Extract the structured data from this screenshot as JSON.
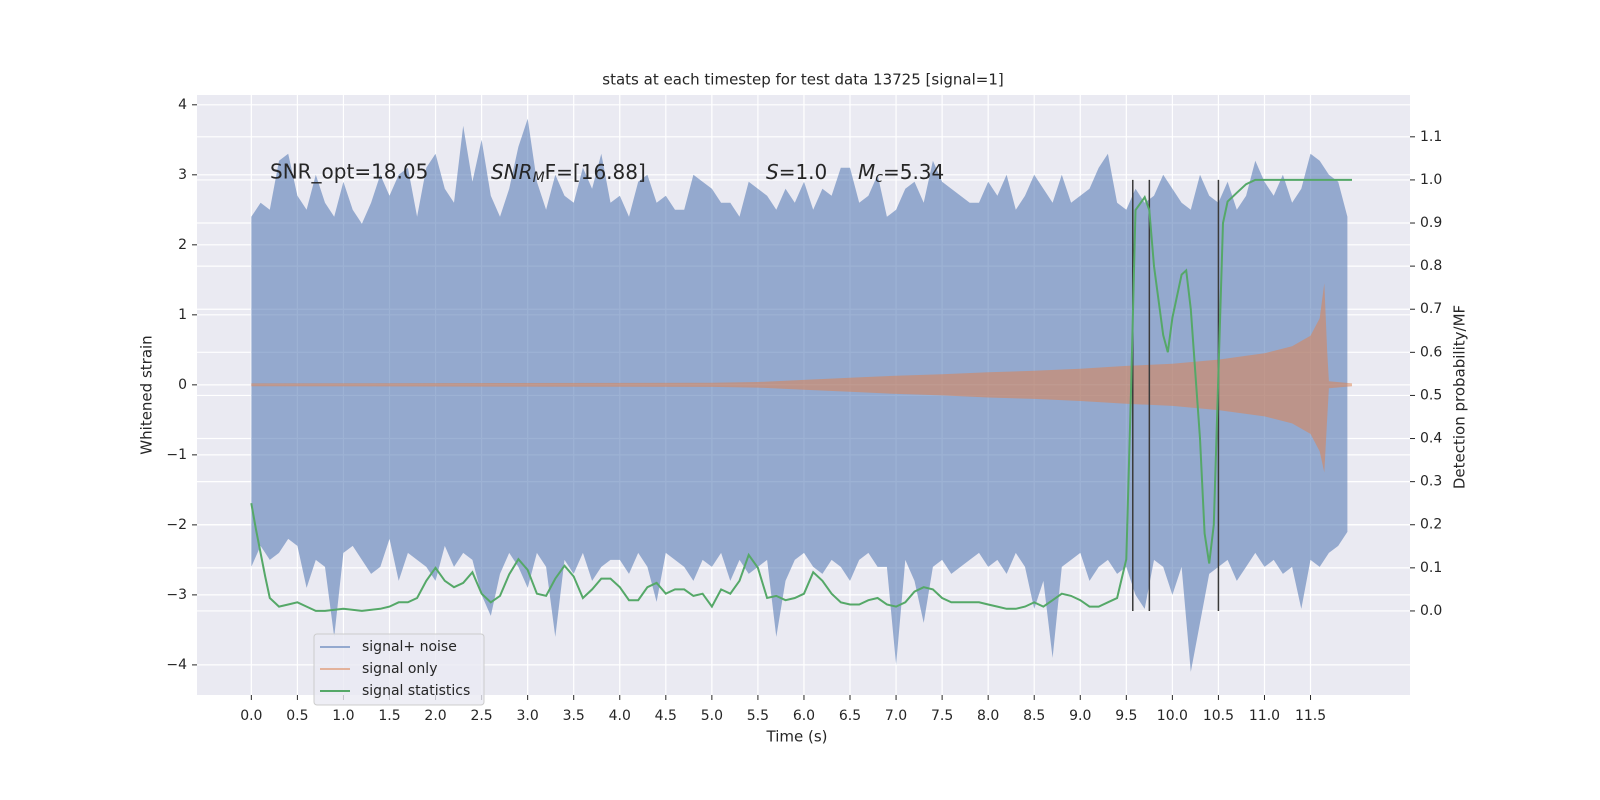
{
  "chart_data": {
    "type": "line",
    "title": "stats at each timestep for test data 13725 [signal=1]",
    "x_label": "Time (s)",
    "y_label": "Whitened strain",
    "y2_label": "Detection probability/MF",
    "xlim": [
      -0.59,
      12.58
    ],
    "ylim": [
      -4.43,
      4.14
    ],
    "y2lim": [
      -0.195,
      1.197
    ],
    "xticks": [
      {
        "value": 0,
        "label": "0.0"
      },
      0.5,
      {
        "value": 1,
        "label": "1.0"
      },
      1.5,
      {
        "value": 2,
        "label": "2.0"
      },
      2.5,
      {
        "value": 3,
        "label": "3.0"
      },
      3.5,
      {
        "value": 4,
        "label": "4.0"
      },
      4.5,
      {
        "value": 5,
        "label": "5.0"
      },
      5.5,
      {
        "value": 6,
        "label": "6.0"
      },
      6.5,
      {
        "value": 7,
        "label": "7.0"
      },
      7.5,
      {
        "value": 8,
        "label": "8.0"
      },
      8.5,
      {
        "value": 9,
        "label": "9.0"
      },
      9.5,
      {
        "value": 10,
        "label": "10.0"
      },
      10.5,
      {
        "value": 11,
        "label": "11.0"
      },
      11.5
    ],
    "yticks": [
      {
        "value": -4,
        "label": "−4"
      },
      {
        "value": -3,
        "label": "−3"
      },
      {
        "value": -2,
        "label": "−2"
      },
      {
        "value": -1,
        "label": "−1"
      },
      0,
      1,
      2,
      3,
      4
    ],
    "y2ticks": [
      {
        "value": 0,
        "label": "0.0"
      },
      0.1,
      0.2,
      0.3,
      0.4,
      0.5,
      0.6,
      0.7,
      0.8,
      0.9,
      {
        "value": 1,
        "label": "1.0"
      },
      1.1
    ],
    "grid": true,
    "legend": "lower left",
    "annotations": [
      "SNR_opt=18.05",
      {
        "italic": "SNR",
        "sub": "M",
        "text": "F=[16.88]"
      },
      {
        "italic": "S",
        "text": "=1.0"
      },
      {
        "italic": "M",
        "sub": "c",
        "text": "=5.34"
      }
    ],
    "vlines": {
      "x": [
        9.57,
        9.75,
        10.5
      ],
      "ymin": 0,
      "ymax": 1,
      "color": "#3a3a3a"
    },
    "series": [
      {
        "name": "signal+ noise",
        "color": "#4c72b0",
        "x": [
          0,
          0.1,
          0.2,
          0.3,
          0.4,
          0.5,
          0.6,
          0.7,
          0.8,
          0.9,
          1,
          1.1,
          1.2,
          1.3,
          1.4,
          1.5,
          1.6,
          1.7,
          1.8,
          1.9,
          2,
          2.1,
          2.2,
          2.3,
          2.4,
          2.5,
          2.6,
          2.7,
          2.8,
          2.9,
          3,
          3.1,
          3.2,
          3.3,
          3.4,
          3.5,
          3.6,
          3.7,
          3.8,
          3.9,
          4,
          4.1,
          4.2,
          4.3,
          4.4,
          4.5,
          4.6,
          4.7,
          4.8,
          4.9,
          5,
          5.1,
          5.2,
          5.3,
          5.4,
          5.5,
          5.6,
          5.7,
          5.8,
          5.9,
          6,
          6.1,
          6.2,
          6.3,
          6.4,
          6.5,
          6.6,
          6.7,
          6.8,
          6.9,
          7,
          7.1,
          7.2,
          7.3,
          7.4,
          7.5,
          7.6,
          7.7,
          7.8,
          7.9,
          8,
          8.1,
          8.2,
          8.3,
          8.4,
          8.5,
          8.6,
          8.7,
          8.8,
          8.9,
          9,
          9.1,
          9.2,
          9.3,
          9.4,
          9.5,
          9.6,
          9.7,
          9.8,
          9.9,
          10,
          10.1,
          10.2,
          10.3,
          10.4,
          10.5,
          10.6,
          10.7,
          10.8,
          10.9,
          11,
          11.1,
          11.2,
          11.3,
          11.4,
          11.5,
          11.6,
          11.7,
          11.8,
          11.9
        ],
        "values": [
          2.4,
          2.6,
          2.5,
          3.2,
          3.3,
          2.7,
          2.5,
          3.0,
          2.6,
          2.4,
          2.9,
          2.5,
          2.3,
          2.6,
          3.0,
          2.7,
          3.0,
          3.1,
          2.4,
          3.1,
          3.3,
          2.8,
          2.6,
          3.7,
          2.9,
          3.5,
          2.7,
          2.4,
          2.8,
          3.4,
          3.8,
          2.9,
          2.5,
          3.0,
          2.7,
          2.6,
          3.1,
          2.8,
          3.3,
          2.6,
          2.7,
          2.4,
          2.9,
          3.0,
          2.6,
          2.7,
          2.5,
          2.5,
          3.0,
          2.9,
          2.8,
          2.6,
          2.6,
          2.4,
          2.9,
          2.8,
          2.7,
          2.5,
          2.8,
          2.6,
          2.9,
          2.5,
          2.8,
          2.7,
          3.1,
          3.1,
          2.6,
          2.7,
          3.0,
          2.4,
          2.5,
          2.8,
          2.9,
          2.6,
          3.2,
          2.9,
          2.8,
          2.7,
          2.6,
          2.6,
          2.9,
          2.7,
          3.0,
          2.5,
          2.7,
          3.0,
          2.8,
          2.6,
          3.0,
          2.6,
          2.7,
          2.8,
          3.1,
          3.3,
          2.6,
          2.5,
          2.8,
          2.6,
          2.7,
          3.0,
          2.8,
          2.6,
          2.5,
          3.0,
          2.7,
          2.6,
          2.9,
          2.5,
          2.7,
          3.2,
          2.9,
          2.7,
          3.0,
          2.6,
          2.8,
          3.3,
          3.2,
          3.0,
          2.9,
          2.4
        ],
        "lower": [
          -2.6,
          -2.3,
          -2.5,
          -2.4,
          -2.2,
          -2.3,
          -2.9,
          -2.5,
          -2.6,
          -3.6,
          -2.4,
          -2.3,
          -2.5,
          -2.7,
          -2.6,
          -2.2,
          -2.8,
          -2.4,
          -2.5,
          -2.6,
          -2.8,
          -2.3,
          -2.6,
          -2.4,
          -2.5,
          -3.0,
          -3.3,
          -2.7,
          -2.4,
          -2.6,
          -2.9,
          -2.4,
          -2.6,
          -3.6,
          -2.5,
          -2.7,
          -2.4,
          -2.8,
          -2.6,
          -2.5,
          -2.5,
          -2.7,
          -2.4,
          -2.6,
          -3.1,
          -2.4,
          -2.5,
          -2.6,
          -2.8,
          -2.5,
          -2.6,
          -2.4,
          -2.8,
          -2.5,
          -2.7,
          -2.6,
          -2.5,
          -3.6,
          -2.8,
          -2.5,
          -2.4,
          -2.6,
          -2.7,
          -2.5,
          -2.6,
          -2.8,
          -2.5,
          -2.4,
          -2.6,
          -2.6,
          -4.0,
          -2.5,
          -2.8,
          -3.4,
          -2.6,
          -2.5,
          -2.7,
          -2.6,
          -2.5,
          -2.4,
          -2.6,
          -2.5,
          -2.7,
          -2.4,
          -2.6,
          -3.2,
          -2.8,
          -3.9,
          -2.6,
          -2.5,
          -2.4,
          -2.8,
          -2.6,
          -2.5,
          -2.7,
          -2.6,
          -3.0,
          -3.2,
          -2.5,
          -2.6,
          -3.0,
          -2.6,
          -4.1,
          -3.4,
          -2.7,
          -2.6,
          -2.5,
          -2.8,
          -2.6,
          -2.4,
          -2.6,
          -2.5,
          -2.7,
          -2.6,
          -3.2,
          -2.5,
          -2.6,
          -2.4,
          -2.3,
          -2.1
        ]
      },
      {
        "name": "signal only",
        "color": "#dd8452",
        "x": [
          0,
          5.0,
          5.5,
          6.0,
          6.5,
          7.0,
          7.5,
          8.0,
          8.5,
          9.0,
          9.5,
          10.0,
          10.5,
          11.0,
          11.3,
          11.5,
          11.6,
          11.65,
          11.68,
          11.7,
          11.95
        ],
        "values": [
          0.02,
          0.03,
          0.04,
          0.07,
          0.1,
          0.13,
          0.15,
          0.18,
          0.2,
          0.23,
          0.27,
          0.3,
          0.36,
          0.45,
          0.55,
          0.7,
          0.95,
          1.45,
          0.5,
          0.05,
          0.02
        ],
        "lower": [
          -0.02,
          -0.03,
          -0.04,
          -0.07,
          -0.1,
          -0.13,
          -0.15,
          -0.18,
          -0.2,
          -0.23,
          -0.27,
          -0.3,
          -0.36,
          -0.45,
          -0.55,
          -0.7,
          -0.95,
          -1.25,
          -0.5,
          -0.05,
          -0.02
        ]
      },
      {
        "name": "signal statistics",
        "color": "#55a868",
        "axis": "y2",
        "x": [
          0,
          0.05,
          0.15,
          0.2,
          0.3,
          0.4,
          0.5,
          0.6,
          0.7,
          0.8,
          1.0,
          1.2,
          1.4,
          1.5,
          1.6,
          1.7,
          1.8,
          1.9,
          2.0,
          2.1,
          2.2,
          2.3,
          2.4,
          2.5,
          2.6,
          2.7,
          2.8,
          2.9,
          3.0,
          3.1,
          3.2,
          3.3,
          3.4,
          3.5,
          3.6,
          3.7,
          3.8,
          3.9,
          4.0,
          4.1,
          4.2,
          4.3,
          4.4,
          4.5,
          4.6,
          4.7,
          4.8,
          4.9,
          5.0,
          5.1,
          5.2,
          5.3,
          5.4,
          5.5,
          5.6,
          5.7,
          5.8,
          5.9,
          6.0,
          6.1,
          6.2,
          6.3,
          6.4,
          6.5,
          6.6,
          6.7,
          6.8,
          6.9,
          7.0,
          7.1,
          7.2,
          7.3,
          7.4,
          7.5,
          7.6,
          7.7,
          7.8,
          7.9,
          8.0,
          8.1,
          8.2,
          8.3,
          8.4,
          8.5,
          8.6,
          8.7,
          8.8,
          8.9,
          9.0,
          9.1,
          9.2,
          9.3,
          9.4,
          9.5,
          9.55,
          9.6,
          9.7,
          9.75,
          9.8,
          9.9,
          9.95,
          10.0,
          10.1,
          10.15,
          10.2,
          10.3,
          10.35,
          10.4,
          10.45,
          10.5,
          10.55,
          10.6,
          10.7,
          10.8,
          10.9,
          11.0,
          11.5,
          11.95
        ],
        "values": [
          0.25,
          0.19,
          0.08,
          0.03,
          0.01,
          0.015,
          0.02,
          0.01,
          0.0,
          0.0,
          0.005,
          0.0,
          0.005,
          0.01,
          0.02,
          0.02,
          0.03,
          0.07,
          0.1,
          0.07,
          0.055,
          0.065,
          0.09,
          0.04,
          0.02,
          0.035,
          0.085,
          0.12,
          0.095,
          0.04,
          0.035,
          0.075,
          0.105,
          0.08,
          0.03,
          0.05,
          0.075,
          0.075,
          0.055,
          0.025,
          0.025,
          0.055,
          0.065,
          0.04,
          0.05,
          0.05,
          0.035,
          0.04,
          0.01,
          0.05,
          0.04,
          0.07,
          0.13,
          0.1,
          0.03,
          0.035,
          0.025,
          0.03,
          0.04,
          0.09,
          0.07,
          0.04,
          0.02,
          0.015,
          0.015,
          0.025,
          0.03,
          0.015,
          0.01,
          0.02,
          0.045,
          0.055,
          0.05,
          0.03,
          0.02,
          0.02,
          0.02,
          0.02,
          0.015,
          0.01,
          0.005,
          0.005,
          0.01,
          0.02,
          0.01,
          0.025,
          0.04,
          0.035,
          0.025,
          0.01,
          0.01,
          0.02,
          0.03,
          0.12,
          0.5,
          0.93,
          0.96,
          0.93,
          0.8,
          0.64,
          0.6,
          0.68,
          0.78,
          0.79,
          0.7,
          0.4,
          0.18,
          0.11,
          0.2,
          0.55,
          0.9,
          0.95,
          0.97,
          0.99,
          1.0,
          1.0,
          1.0,
          1.0
        ]
      }
    ]
  }
}
